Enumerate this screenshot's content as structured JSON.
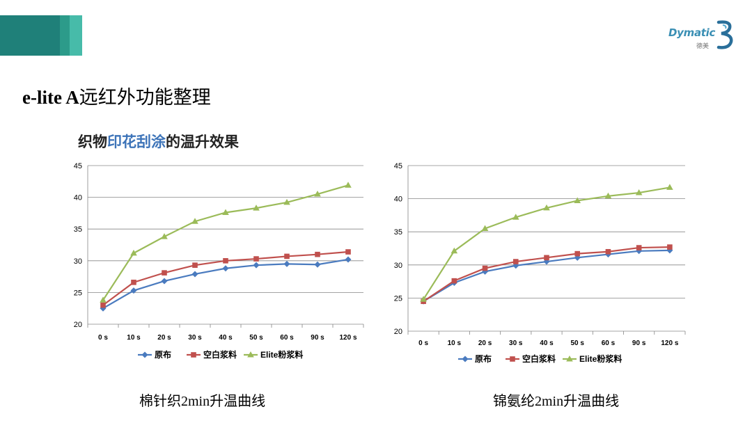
{
  "header": {
    "brand_text": "Dymatic",
    "brand_sub": "德美"
  },
  "page_title_latin": "e-lite A",
  "page_title_cjk": "远红外功能整理",
  "subtitle": {
    "part1": "织物",
    "highlight": "印花刮涂",
    "part2": "的温升效果"
  },
  "colors": {
    "series": [
      "#4a7bbf",
      "#c0504d",
      "#9bbb59"
    ],
    "gridline": "#868686",
    "band": [
      "#1f8079",
      "#2c9b8a",
      "#47bba9"
    ],
    "highlight": "#3c73b8"
  },
  "chart_data": [
    {
      "type": "line",
      "title": "",
      "caption": "棉针织2min升温曲线",
      "categories": [
        "0 s",
        "10 s",
        "20 s",
        "30 s",
        "40 s",
        "50 s",
        "60 s",
        "90 s",
        "120 s"
      ],
      "series": [
        {
          "name": "原布",
          "marker": "diamond",
          "values": [
            22.5,
            25.3,
            26.8,
            27.9,
            28.8,
            29.3,
            29.5,
            29.4,
            30.2
          ]
        },
        {
          "name": "空白浆料",
          "marker": "square",
          "values": [
            23.0,
            26.6,
            28.1,
            29.3,
            30.0,
            30.3,
            30.7,
            31.0,
            31.4
          ]
        },
        {
          "name": "Elite粉浆料",
          "marker": "triangle",
          "values": [
            23.8,
            31.2,
            33.8,
            36.2,
            37.6,
            38.3,
            39.2,
            40.5,
            41.9
          ]
        }
      ],
      "ylim": [
        20,
        45
      ],
      "yticks": [
        20,
        25,
        30,
        35,
        40,
        45
      ],
      "grid": true,
      "legend": "bottom"
    },
    {
      "type": "line",
      "title": "",
      "caption": "锦氨纶2min升温曲线",
      "categories": [
        "0 s",
        "10 s",
        "20 s",
        "30 s",
        "40 s",
        "50 s",
        "60 s",
        "90 s",
        "120 s"
      ],
      "series": [
        {
          "name": "原布",
          "marker": "diamond",
          "values": [
            24.5,
            27.3,
            29.0,
            29.9,
            30.5,
            31.1,
            31.6,
            32.1,
            32.2
          ]
        },
        {
          "name": "空白浆料",
          "marker": "square",
          "values": [
            24.5,
            27.6,
            29.5,
            30.5,
            31.1,
            31.7,
            32.0,
            32.6,
            32.7
          ]
        },
        {
          "name": "Elite粉浆料",
          "marker": "triangle",
          "values": [
            24.8,
            32.1,
            35.5,
            37.2,
            38.6,
            39.7,
            40.4,
            40.9,
            41.7
          ]
        }
      ],
      "ylim": [
        20,
        45
      ],
      "yticks": [
        20,
        25,
        30,
        35,
        40,
        45
      ],
      "grid": true,
      "legend": "bottom"
    }
  ]
}
